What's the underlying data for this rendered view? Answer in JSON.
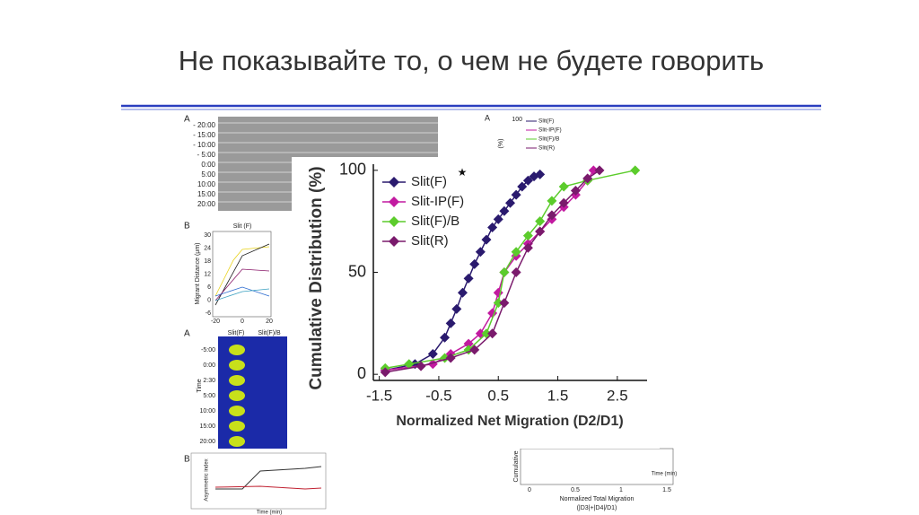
{
  "slide": {
    "title": "Не показывайте то, о чем не будете говорить"
  },
  "background_figures": {
    "panel_a_letter": "A",
    "panel_a_times": [
      "- 20:00",
      "- 15:00",
      "- 10:00",
      "- 5:00",
      "0:00",
      "5:00",
      "10:00",
      "15:00",
      "20:00"
    ],
    "panel_b_letter": "B",
    "panel_b_title": "Slit (F)",
    "panel_b_ylabel": "Migrant Distance (μm)",
    "panel_b_yticks": [
      "30",
      "24",
      "18",
      "12",
      "6",
      "0",
      "-6"
    ],
    "panel_b_xticks": [
      "-20",
      "0",
      "20"
    ],
    "panel_c_letter": "A",
    "panel_c_cols": [
      "Slit(F)",
      "Slit(F)/B"
    ],
    "panel_c_times": [
      "-5:00",
      "0:00",
      "2:30",
      "5:00",
      "10:00",
      "15:00",
      "20:00"
    ],
    "panel_c_ylabel": "Time",
    "panel_d_letter": "B",
    "panel_d_ylabel": "Asymmetric index",
    "panel_d_xlabel": "Time (min)",
    "inset_letter": "A",
    "inset_tick": "100",
    "inset_ylabel": "(%)",
    "inset_legend": [
      "Slit(F)",
      "Slit-IP(F)",
      "Slit(F)/B",
      "Slit(R)"
    ],
    "bottom_ylabel": "Cumulative",
    "bottom_xticks": [
      "0",
      "0.5",
      "1",
      "1.5"
    ],
    "bottom_xlabel": "Normalized Total Migration",
    "bottom_xlabel2": "(|D3|+|D4|/D1)",
    "bottom_right_xlabel": "Time (min)"
  },
  "chart_data": {
    "type": "line",
    "xlabel": "Normalized Net Migration (D2/D1)",
    "ylabel": "Cumulative Distribution (%)",
    "annotation": "★",
    "xlim": [
      -1.6,
      3.0
    ],
    "ylim": [
      -3,
      103
    ],
    "xticks": [
      -1.5,
      -0.5,
      0.5,
      1.5,
      2.5
    ],
    "yticks": [
      0,
      50,
      100
    ],
    "legend": "upper left",
    "series": [
      {
        "name": "Slit(F)",
        "color": "#2a1a6e",
        "x": [
          -1.4,
          -0.9,
          -0.6,
          -0.4,
          -0.3,
          -0.2,
          -0.1,
          0,
          0.1,
          0.2,
          0.3,
          0.4,
          0.5,
          0.6,
          0.7,
          0.8,
          0.9,
          1.0,
          1.1,
          1.2
        ],
        "values": [
          2,
          5,
          10,
          18,
          25,
          32,
          40,
          47,
          54,
          60,
          66,
          72,
          76,
          80,
          84,
          88,
          92,
          95,
          97,
          98
        ]
      },
      {
        "name": "Slit-IP(F)",
        "color": "#c21aa0",
        "x": [
          -1.4,
          -0.6,
          -0.3,
          0,
          0.2,
          0.4,
          0.5,
          0.6,
          0.8,
          1.0,
          1.2,
          1.4,
          1.6,
          1.8,
          2.0,
          2.1
        ],
        "values": [
          2,
          5,
          10,
          15,
          20,
          30,
          40,
          50,
          58,
          64,
          70,
          76,
          82,
          88,
          95,
          100
        ]
      },
      {
        "name": "Slit(F)/B",
        "color": "#5ccc2c",
        "x": [
          -1.4,
          -1.0,
          -0.4,
          0,
          0.3,
          0.5,
          0.6,
          0.8,
          1.0,
          1.2,
          1.4,
          1.6,
          2.0,
          2.8
        ],
        "values": [
          3,
          5,
          8,
          12,
          20,
          35,
          50,
          60,
          68,
          75,
          85,
          92,
          95,
          100
        ]
      },
      {
        "name": "Slit(R)",
        "color": "#7a1a6c",
        "x": [
          -1.4,
          -0.8,
          -0.3,
          0.1,
          0.4,
          0.6,
          0.8,
          1.0,
          1.2,
          1.4,
          1.6,
          1.8,
          2.0,
          2.2
        ],
        "values": [
          1,
          4,
          8,
          12,
          20,
          35,
          50,
          62,
          70,
          78,
          84,
          90,
          96,
          100
        ]
      }
    ]
  }
}
